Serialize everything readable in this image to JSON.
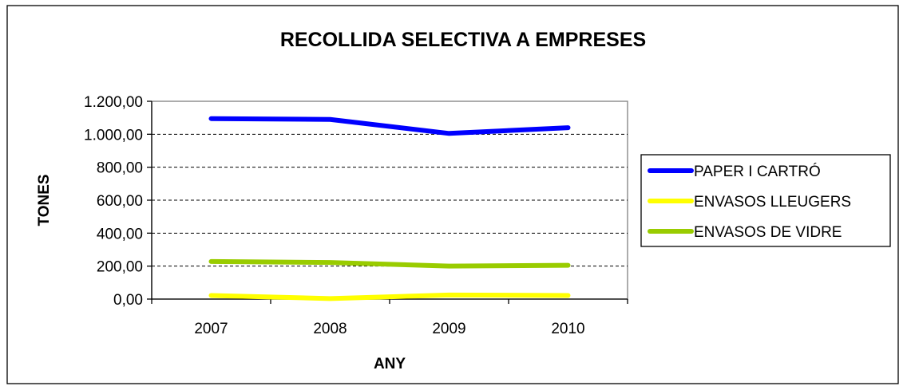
{
  "chart_data": {
    "type": "line",
    "title": "RECOLLIDA SELECTIVA A EMPRESES",
    "xlabel": "ANY",
    "ylabel": "TONES",
    "categories": [
      "2007",
      "2008",
      "2009",
      "2010"
    ],
    "ylim": [
      0,
      1200
    ],
    "ytick_step": 200,
    "ytick_labels": [
      "0,00",
      "200,00",
      "400,00",
      "600,00",
      "800,00",
      "1.000,00",
      "1.200,00"
    ],
    "grid": "horizontal dashed",
    "legend_position": "right",
    "series": [
      {
        "name": "PAPER I CARTRÓ",
        "color": "#0000ff",
        "values": [
          1095,
          1090,
          1005,
          1040
        ]
      },
      {
        "name": "ENVASOS LLEUGERS",
        "color": "#ffff00",
        "values": [
          22,
          3,
          25,
          22
        ]
      },
      {
        "name": "ENVASOS DE VIDRE",
        "color": "#99cc00",
        "values": [
          228,
          222,
          200,
          205
        ]
      }
    ]
  }
}
